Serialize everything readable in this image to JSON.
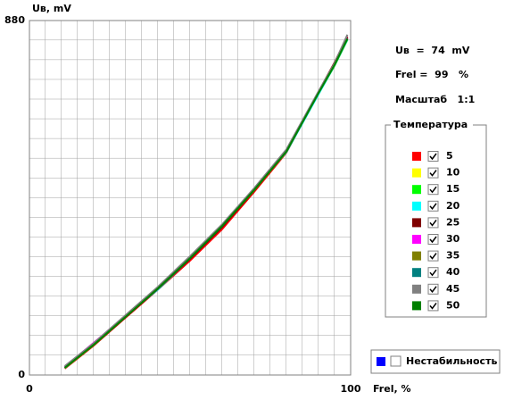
{
  "chart_data": {
    "type": "line",
    "x_label": "Frel, %",
    "y_label": "Uв, mV",
    "x": [
      11,
      20,
      30,
      40,
      50,
      60,
      70,
      80,
      90,
      95,
      99
    ],
    "xlim": [
      0,
      100
    ],
    "xticks": [
      0,
      100
    ],
    "ylim": [
      0,
      880
    ],
    "yticks": [
      0,
      880
    ],
    "grid": true,
    "legend_title": "Температура",
    "series": [
      {
        "name": "5",
        "color": "#ff0000",
        "values": [
          16,
          73,
          143,
          212,
          284,
          362,
          455,
          552,
          702,
          775,
          838
        ]
      },
      {
        "name": "10",
        "color": "#ffff00",
        "values": [
          18,
          76,
          146,
          216,
          291,
          371,
          460,
          556,
          699,
          771,
          834
        ]
      },
      {
        "name": "15",
        "color": "#00ff00",
        "values": [
          19,
          78,
          148,
          218,
          293,
          373,
          462,
          557,
          698,
          768,
          832
        ]
      },
      {
        "name": "20",
        "color": "#00ffff",
        "values": [
          17,
          75,
          147,
          212,
          289,
          368,
          463,
          553,
          697,
          769,
          833
        ]
      },
      {
        "name": "25",
        "color": "#800000",
        "values": [
          18,
          74,
          144,
          214,
          288,
          367,
          458,
          555,
          703,
          776,
          840
        ]
      },
      {
        "name": "30",
        "color": "#ff00ff",
        "values": [
          20,
          80,
          147,
          216,
          292,
          371,
          461,
          556,
          701,
          772,
          836
        ]
      },
      {
        "name": "35",
        "color": "#808000",
        "values": [
          17,
          74,
          145,
          215,
          290,
          370,
          459,
          554,
          700,
          770,
          835
        ]
      },
      {
        "name": "40",
        "color": "#008080",
        "values": [
          18,
          76,
          146,
          215,
          290,
          370,
          461,
          555,
          700,
          771,
          835
        ]
      },
      {
        "name": "45",
        "color": "#808080",
        "values": [
          22,
          79,
          149,
          219,
          295,
          374,
          464,
          560,
          704,
          774,
          845
        ]
      },
      {
        "name": "50",
        "color": "#008000",
        "values": [
          18,
          75,
          145,
          215,
          290,
          370,
          460,
          555,
          700,
          770,
          835
        ]
      }
    ]
  },
  "readout": {
    "voltage": "Uв  =  74  mV",
    "frequency": "Frel =  99   %",
    "scale": "Масштаб   1:1"
  },
  "instability": "Нестабильность"
}
